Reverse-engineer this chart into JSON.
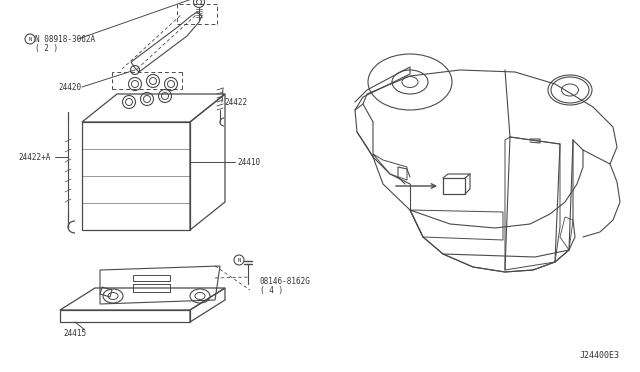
{
  "bg_color": "#ffffff",
  "line_color": "#4a4a4a",
  "text_color": "#333333",
  "diagram_code": "J24400E3",
  "figsize": [
    6.4,
    3.72
  ],
  "dpi": 100,
  "labels": {
    "part1_line1": "N 08918-3062A",
    "part1_line2": "( 2 )",
    "part2": "24420",
    "part3": "24422",
    "part4": "24410",
    "part5": "24422+A",
    "part6_line1": "08146-8162G",
    "part6_line2": "( 4 )",
    "part7": "24415"
  }
}
